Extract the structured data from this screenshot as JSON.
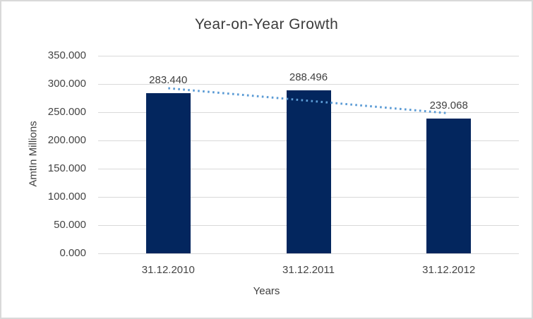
{
  "chart_data": {
    "type": "bar",
    "title": "Year-on-Year Growth",
    "xlabel": "Years",
    "ylabel": "AmtIn Millions",
    "categories": [
      "31.12.2010",
      "31.12.2011",
      "31.12.2012"
    ],
    "values": [
      283.44,
      288.496,
      239.068
    ],
    "value_labels": [
      "283.440",
      "288.496",
      "239.068"
    ],
    "ytick_values": [
      0,
      50,
      100,
      150,
      200,
      250,
      300,
      350
    ],
    "ytick_labels": [
      "0.000",
      "50.000",
      "100.000",
      "150.000",
      "200.000",
      "250.000",
      "300.000",
      "350.000"
    ],
    "ylim": [
      0,
      350
    ],
    "grid": true,
    "legend": false,
    "colors": {
      "bar": "#03265E",
      "trendline": "#5B9BD5",
      "gridline": "#D9D9D9",
      "text": "#404040"
    },
    "trendline": {
      "type": "linear",
      "style": "dotted",
      "start_value": 292.5,
      "end_value": 248.1
    }
  }
}
